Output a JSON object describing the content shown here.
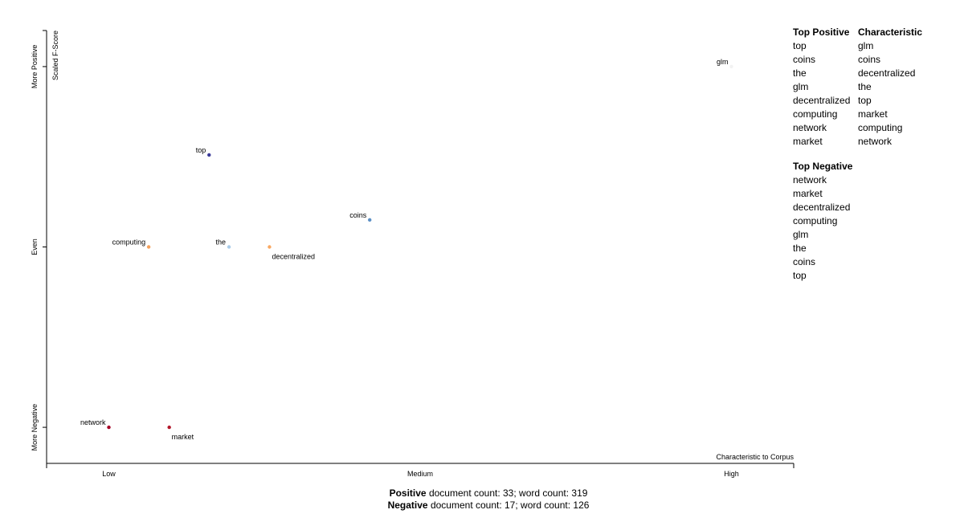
{
  "chart_data": {
    "type": "scatter",
    "x_label": "Characteristic to Corpus",
    "y_label": "Scaled F-Score",
    "labels": [
      "glm",
      "top",
      "coins",
      "computing",
      "the",
      "decentralized",
      "network",
      "market"
    ],
    "x": [
      1.0,
      0.161,
      0.419,
      0.064,
      0.193,
      0.258,
      0.0,
      0.097
    ],
    "values": [
      1.0,
      0.755,
      0.575,
      0.5,
      0.5,
      0.5,
      0.0,
      0.0
    ],
    "colors": [
      "#f2f2f2",
      "#3a3a98",
      "#5b8fc4",
      "#f5a05a",
      "#a9cbe8",
      "#f9a862",
      "#a50026",
      "#b2182b"
    ],
    "xlim": [
      -0.1,
      1.1
    ],
    "xticks": [
      {
        "value": 0,
        "label": "Low"
      },
      {
        "value": 0.5,
        "label": "Medium"
      },
      {
        "value": 1,
        "label": "High"
      }
    ],
    "ylim": [
      -0.1,
      1.1
    ],
    "yticks": [
      {
        "value": 0,
        "label": "More Negative"
      },
      {
        "value": 0.5,
        "label": "Even"
      },
      {
        "value": 1,
        "label": "More Positive"
      }
    ],
    "grid": false
  },
  "lists": [
    {
      "title": "Top Positive",
      "terms": [
        "top",
        "coins",
        "the",
        "glm",
        "decentralized",
        "computing",
        "network",
        "market"
      ]
    },
    {
      "title": "Characteristic",
      "terms": [
        "glm",
        "coins",
        "decentralized",
        "the",
        "top",
        "market",
        "computing",
        "network"
      ]
    },
    {
      "title": "Top Negative",
      "terms": [
        "network",
        "market",
        "decentralized",
        "computing",
        "glm",
        "the",
        "coins",
        "top"
      ]
    }
  ],
  "footer": [
    {
      "label": "Positive",
      "text": "document count: 33; word count: 319"
    },
    {
      "label": "Negative",
      "text": "document count: 17; word count: 126"
    }
  ]
}
